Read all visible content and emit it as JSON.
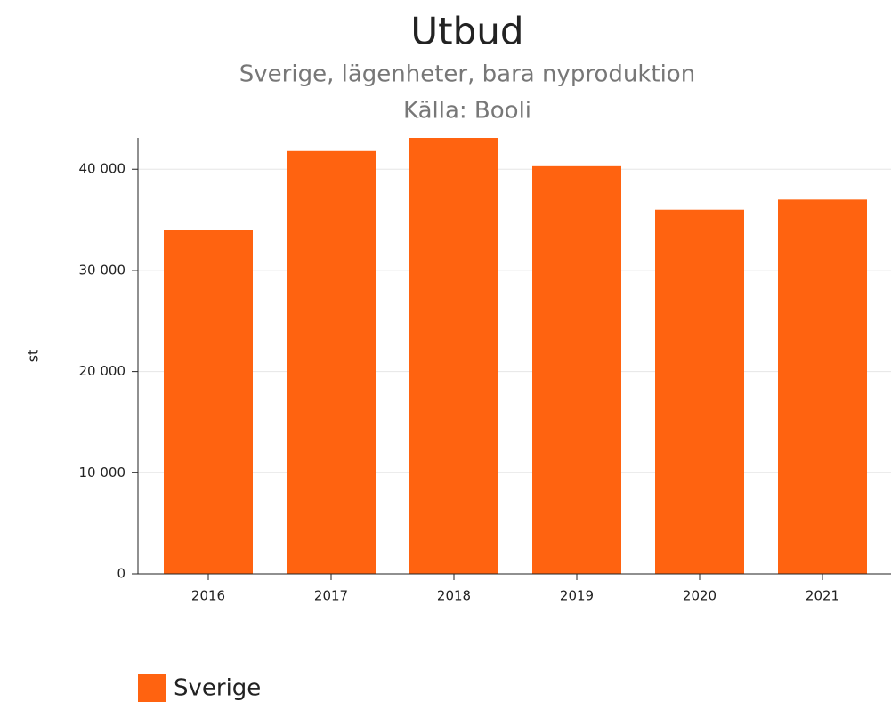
{
  "chart_data": {
    "type": "bar",
    "title": "Utbud",
    "subtitle": "Sverige, lägenheter, bara nyproduktion",
    "source": "Källa: Booli",
    "y_label": "st",
    "categories": [
      "2016",
      "2017",
      "2018",
      "2019",
      "2020",
      "2021"
    ],
    "series": [
      {
        "name": "Sverige",
        "color": "#ff6310",
        "values": [
          34000,
          41800,
          43100,
          40300,
          36000,
          37000
        ]
      }
    ],
    "ylim": [
      0,
      43100
    ],
    "yticks": [
      0,
      {
        "value": 10000,
        "label": "10 000"
      },
      {
        "value": 20000,
        "label": "20 000"
      },
      {
        "value": 30000,
        "label": "30 000"
      },
      {
        "value": 40000,
        "label": "40 000"
      }
    ],
    "grid": true
  }
}
